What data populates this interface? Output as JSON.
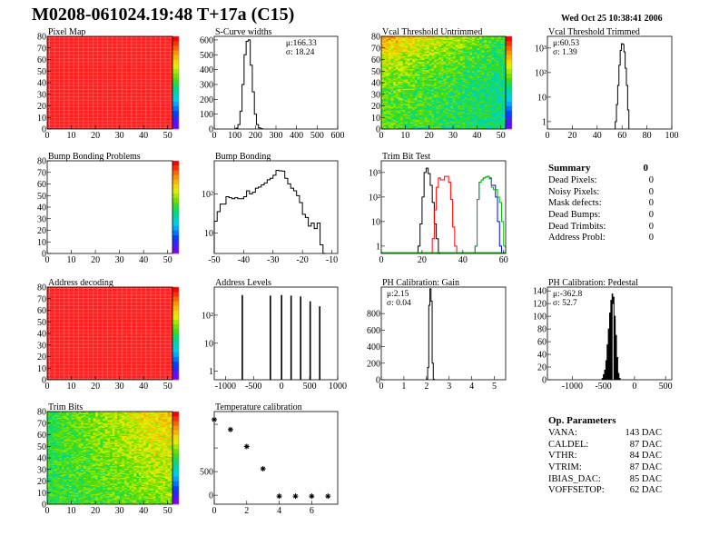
{
  "title": "M0208-061024.19:48 T+17a (C15)",
  "date": "Wed Oct 25 10:38:41 2006",
  "summary": {
    "title": "Summary",
    "total": "0",
    "rows": [
      {
        "label": "Dead Pixels:",
        "value": "0"
      },
      {
        "label": "Noisy Pixels:",
        "value": "0"
      },
      {
        "label": "Mask defects:",
        "value": "0"
      },
      {
        "label": "Dead Bumps:",
        "value": "0"
      },
      {
        "label": "Dead Trimbits:",
        "value": "0"
      },
      {
        "label": "Address Probl:",
        "value": "0"
      }
    ]
  },
  "op_parameters": {
    "title": "Op. Parameters",
    "rows": [
      {
        "label": "VANA:",
        "value": "143 DAC"
      },
      {
        "label": "CALDEL:",
        "value": "87 DAC"
      },
      {
        "label": "VTHR:",
        "value": "84 DAC"
      },
      {
        "label": "VTRIM:",
        "value": "87 DAC"
      },
      {
        "label": "IBIAS_DAC:",
        "value": "85 DAC"
      },
      {
        "label": "VOFFSETOP:",
        "value": "62 DAC"
      }
    ]
  },
  "chart_data": [
    {
      "type": "heatmap",
      "title": "Pixel Map",
      "xlim": [
        0,
        52
      ],
      "ylim": [
        0,
        80
      ],
      "zlim": [
        0,
        10
      ],
      "uniform_value": 10,
      "xticks": [
        0,
        10,
        20,
        30,
        40,
        50
      ],
      "yticks": [
        0,
        10,
        20,
        30,
        40,
        50,
        60,
        70,
        80
      ]
    },
    {
      "type": "bar",
      "histogram": true,
      "title": "S-Curve widths",
      "xlim": [
        0,
        600
      ],
      "ylim": [
        0,
        624
      ],
      "log_y": false,
      "xticks": [
        0,
        100,
        200,
        300,
        400,
        500,
        600
      ],
      "yticks": [
        0,
        100,
        200,
        300,
        400,
        500,
        600
      ],
      "stats": [
        "μ:166.33",
        "σ: 18.24"
      ],
      "stats_position": "top-right",
      "series": [
        {
          "color": "#000000",
          "bin_width": 10,
          "bins": [
            [
              110,
              5
            ],
            [
              120,
              30
            ],
            [
              130,
              120
            ],
            [
              140,
              300
            ],
            [
              150,
              500
            ],
            [
              160,
              590
            ],
            [
              170,
              600
            ],
            [
              180,
              430
            ],
            [
              190,
              250
            ],
            [
              200,
              100
            ],
            [
              210,
              30
            ],
            [
              220,
              8
            ],
            [
              230,
              2
            ]
          ]
        }
      ]
    },
    {
      "type": "heatmap",
      "title": "Vcal Threshold Untrimmed",
      "xlim": [
        0,
        52
      ],
      "ylim": [
        0,
        80
      ],
      "zlim": [
        90,
        130
      ],
      "xticks": [
        0,
        10,
        20,
        30,
        40,
        50
      ],
      "yticks": [
        0,
        10,
        20,
        30,
        40,
        50,
        60,
        70,
        80
      ]
    },
    {
      "type": "bar",
      "histogram": true,
      "title": "Vcal Threshold Trimmed",
      "xlim": [
        0,
        100
      ],
      "ylim": [
        0.5,
        3000
      ],
      "log_y": true,
      "xticks": [
        0,
        20,
        40,
        60,
        80,
        100
      ],
      "yticks": [
        1,
        10,
        100,
        1000
      ],
      "ytick_labels": [
        "1",
        "10",
        "10²",
        "10³"
      ],
      "stats": [
        "μ:60.53",
        "σ: 1.39"
      ],
      "stats_position": "top-left",
      "series": [
        {
          "color": "#000000",
          "bin_width": 1,
          "bins": [
            [
              55,
              1
            ],
            [
              56,
              5
            ],
            [
              57,
              30
            ],
            [
              58,
              200
            ],
            [
              59,
              800
            ],
            [
              60,
              1500
            ],
            [
              61,
              1400
            ],
            [
              62,
              700
            ],
            [
              63,
              150
            ],
            [
              64,
              30
            ],
            [
              65,
              3
            ]
          ]
        }
      ]
    },
    {
      "type": "heatmap",
      "title": "Bump Bonding Problems",
      "xlim": [
        0,
        52
      ],
      "ylim": [
        0,
        80
      ],
      "zlim": [
        0,
        2
      ],
      "empty": true,
      "xticks": [
        0,
        10,
        20,
        30,
        40,
        50
      ],
      "yticks": [
        0,
        10,
        20,
        30,
        40,
        50,
        60,
        70,
        80
      ]
    },
    {
      "type": "bar",
      "histogram": true,
      "title": "Bump Bonding",
      "xlim": [
        -50,
        -8
      ],
      "ylim": [
        3,
        700
      ],
      "log_y": true,
      "xticks": [
        -50,
        -40,
        -30,
        -20,
        -10
      ],
      "yticks": [
        10,
        100
      ],
      "ytick_labels": [
        "10",
        "10²"
      ],
      "series": [
        {
          "color": "#000000",
          "bin_width": 1,
          "bins": [
            [
              -49.5,
              20
            ],
            [
              -48.5,
              35
            ],
            [
              -47.5,
              55
            ],
            [
              -46.5,
              55
            ],
            [
              -45.5,
              85
            ],
            [
              -44.5,
              80
            ],
            [
              -43.5,
              75
            ],
            [
              -42.5,
              80
            ],
            [
              -41.5,
              75
            ],
            [
              -40.5,
              75
            ],
            [
              -39.5,
              85
            ],
            [
              -38.5,
              120
            ],
            [
              -37.5,
              100
            ],
            [
              -36.5,
              110
            ],
            [
              -35.5,
              140
            ],
            [
              -34.5,
              150
            ],
            [
              -33.5,
              170
            ],
            [
              -32.5,
              190
            ],
            [
              -31.5,
              230
            ],
            [
              -30.5,
              250
            ],
            [
              -29.5,
              300
            ],
            [
              -28.5,
              400
            ],
            [
              -27.5,
              390
            ],
            [
              -26.5,
              380
            ],
            [
              -25.5,
              250
            ],
            [
              -24.5,
              180
            ],
            [
              -23.5,
              140
            ],
            [
              -22.5,
              120
            ],
            [
              -21.5,
              90
            ],
            [
              -20.5,
              60
            ],
            [
              -19.5,
              30
            ],
            [
              -18.5,
              25
            ],
            [
              -17.5,
              15
            ],
            [
              -16.5,
              18
            ],
            [
              -15.5,
              13
            ],
            [
              -14.5,
              18
            ],
            [
              -13.5,
              5
            ],
            [
              -12.5,
              2
            ]
          ]
        }
      ]
    },
    {
      "type": "bar",
      "histogram": true,
      "title": "Trim Bit Test",
      "xlim": [
        0,
        61
      ],
      "ylim": [
        0.5,
        3000
      ],
      "log_y": true,
      "xticks": [
        0,
        20,
        40,
        60
      ],
      "yticks": [
        1,
        10,
        100,
        1000
      ],
      "ytick_labels": [
        "1",
        "10",
        "10²",
        "10³"
      ],
      "series": [
        {
          "color": "#000000",
          "bin_width": 1,
          "bins": [
            [
              18.5,
              1
            ],
            [
              19.5,
              8
            ],
            [
              20.5,
              100
            ],
            [
              21.5,
              1000
            ],
            [
              22.5,
              1500
            ],
            [
              23.5,
              900
            ],
            [
              24.5,
              300
            ],
            [
              25.5,
              60
            ],
            [
              26.5,
              8
            ],
            [
              27.5,
              2
            ],
            [
              28.5,
              0.5
            ]
          ]
        },
        {
          "color": "#ff0000",
          "bin_width": 1,
          "bins": [
            [
              25.5,
              2
            ],
            [
              26.5,
              30
            ],
            [
              27.5,
              250
            ],
            [
              28.5,
              600
            ],
            [
              29.5,
              500
            ],
            [
              30.5,
              500
            ],
            [
              31.5,
              700
            ],
            [
              32.5,
              700
            ],
            [
              33.5,
              400
            ],
            [
              34.5,
              80
            ],
            [
              35.5,
              6
            ],
            [
              36.5,
              1
            ]
          ]
        },
        {
          "color": "#0000ff",
          "bin_width": 1,
          "bins": [
            [
              46.5,
              1
            ],
            [
              47.5,
              80
            ],
            [
              48.5,
              400
            ],
            [
              49.5,
              500
            ],
            [
              50.5,
              600
            ],
            [
              51.5,
              650
            ],
            [
              52.5,
              700
            ],
            [
              53.5,
              600
            ],
            [
              54.5,
              300
            ],
            [
              55.5,
              300
            ],
            [
              56.5,
              100
            ],
            [
              57.5,
              10
            ],
            [
              58.5,
              1
            ]
          ]
        },
        {
          "color": "#00bb00",
          "bin_width": 1,
          "bins": [
            [
              46.5,
              1
            ],
            [
              47.5,
              80
            ],
            [
              48.5,
              400
            ],
            [
              49.5,
              500
            ],
            [
              50.5,
              600
            ],
            [
              51.5,
              650
            ],
            [
              52.5,
              700
            ],
            [
              53.5,
              550
            ],
            [
              54.5,
              250
            ],
            [
              55.5,
              200
            ],
            [
              56.5,
              200
            ],
            [
              57.5,
              100
            ],
            [
              58.5,
              60
            ],
            [
              59.5,
              10
            ],
            [
              60.5,
              1
            ]
          ]
        }
      ]
    },
    {
      "type": "heatmap",
      "title": "Address decoding",
      "xlim": [
        0,
        52
      ],
      "ylim": [
        0,
        80
      ],
      "zlim": [
        0,
        1
      ],
      "uniform_value": 1,
      "xticks": [
        0,
        10,
        20,
        30,
        40,
        50
      ],
      "yticks": [
        0,
        10,
        20,
        30,
        40,
        50,
        60,
        70,
        80
      ]
    },
    {
      "type": "bar",
      "histogram": true,
      "title": "Address Levels",
      "xlim": [
        -1200,
        1000
      ],
      "ylim": [
        0.5,
        1000
      ],
      "log_y": true,
      "xticks": [
        -1000,
        -500,
        0,
        500,
        1000
      ],
      "yticks": [
        1,
        10,
        100
      ],
      "ytick_labels": [
        "1",
        "10",
        "10²"
      ],
      "series": [
        {
          "color": "#000000",
          "bin_width": 10,
          "bins": [
            [
              -700,
              500
            ],
            [
              -200,
              480
            ],
            [
              0,
              500
            ],
            [
              170,
              480
            ],
            [
              340,
              450
            ],
            [
              510,
              300
            ],
            [
              680,
              200
            ]
          ]
        }
      ]
    },
    {
      "type": "bar",
      "histogram": true,
      "title": "PH Calibration: Gain",
      "xlim": [
        0,
        5.5
      ],
      "ylim": [
        0,
        1120
      ],
      "log_y": false,
      "xticks": [
        0,
        1,
        2,
        3,
        4,
        5
      ],
      "yticks": [
        0,
        200,
        400,
        600,
        800
      ],
      "stats": [
        "μ:2.15",
        "σ: 0.04"
      ],
      "stats_position": "top-left",
      "series": [
        {
          "color": "#000000",
          "bin_width": 0.05,
          "bins": [
            [
              2.025,
              10
            ],
            [
              2.075,
              150
            ],
            [
              2.125,
              900
            ],
            [
              2.175,
              1100
            ],
            [
              2.225,
              950
            ],
            [
              2.275,
              200
            ],
            [
              2.325,
              5
            ]
          ]
        }
      ]
    },
    {
      "type": "bar",
      "histogram": true,
      "title": "PH Calibration: Pedestal",
      "xlim": [
        -1400,
        600
      ],
      "ylim": [
        0,
        146
      ],
      "log_y": false,
      "xticks": [
        -1000,
        -500,
        0,
        500
      ],
      "yticks": [
        0,
        20,
        40,
        60,
        80,
        100,
        120,
        140
      ],
      "stats": [
        "μ:-362.8",
        "σ: 52.7"
      ],
      "stats_position": "top-left",
      "series": [
        {
          "color": "#000000",
          "bin_width": 10,
          "bins": [
            [
              -515,
              2
            ],
            [
              -495,
              8
            ],
            [
              -475,
              15
            ],
            [
              -455,
              30
            ],
            [
              -435,
              55
            ],
            [
              -415,
              80
            ],
            [
              -395,
              105
            ],
            [
              -375,
              125
            ],
            [
              -355,
              135
            ],
            [
              -345,
              120
            ],
            [
              -335,
              130
            ],
            [
              -315,
              100
            ],
            [
              -295,
              70
            ],
            [
              -275,
              35
            ],
            [
              -255,
              10
            ],
            [
              -235,
              2
            ]
          ]
        }
      ]
    },
    {
      "type": "heatmap",
      "title": "Trim Bits",
      "xlim": [
        0,
        52
      ],
      "ylim": [
        0,
        80
      ],
      "zlim": [
        0,
        16
      ],
      "xticks": [
        0,
        10,
        20,
        30,
        40,
        50
      ],
      "yticks": [
        0,
        10,
        20,
        30,
        40,
        50,
        60,
        70,
        80
      ]
    },
    {
      "type": "scatter",
      "title": "Temperature calibration",
      "xlim": [
        0,
        7.6
      ],
      "ylim": [
        -190,
        1770
      ],
      "marker": "star",
      "xticks": [
        0,
        2,
        4,
        6
      ],
      "yticks": [
        0,
        500,
        1000,
        1500
      ],
      "ytick_labels": [
        "0",
        "500",
        "",
        ""
      ],
      "points": [
        [
          0,
          1600
        ],
        [
          1,
          1390
        ],
        [
          2,
          1030
        ],
        [
          3,
          560
        ],
        [
          4,
          -20
        ],
        [
          5,
          -20
        ],
        [
          6,
          -20
        ],
        [
          7,
          -20
        ]
      ]
    }
  ]
}
